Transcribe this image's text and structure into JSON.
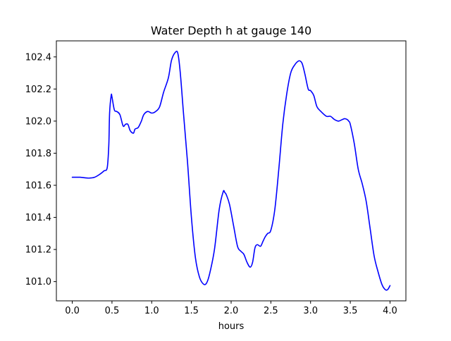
{
  "chart_data": {
    "type": "line",
    "title": "Water Depth h at gauge 140",
    "xlabel": "hours",
    "ylabel": "",
    "xlim": [
      -0.2,
      4.2
    ],
    "ylim": [
      100.88,
      102.5
    ],
    "xticks": [
      0.0,
      0.5,
      1.0,
      1.5,
      2.0,
      2.5,
      3.0,
      3.5,
      4.0
    ],
    "xtick_labels": [
      "0.0",
      "0.5",
      "1.0",
      "1.5",
      "2.0",
      "2.5",
      "3.0",
      "3.5",
      "4.0"
    ],
    "yticks": [
      101.0,
      101.2,
      101.4,
      101.6,
      101.8,
      102.0,
      102.2,
      102.4
    ],
    "ytick_labels": [
      "101.0",
      "101.2",
      "101.4",
      "101.6",
      "101.8",
      "102.0",
      "102.2",
      "102.4"
    ],
    "grid": false,
    "legend": "none",
    "series": [
      {
        "color": "#0000ff",
        "x": [
          0.0,
          0.1,
          0.2,
          0.28,
          0.35,
          0.4,
          0.44,
          0.46,
          0.47,
          0.49,
          0.5,
          0.53,
          0.56,
          0.6,
          0.64,
          0.67,
          0.7,
          0.73,
          0.77,
          0.79,
          0.83,
          0.87,
          0.9,
          0.95,
          1.0,
          1.05,
          1.1,
          1.15,
          1.21,
          1.25,
          1.3,
          1.33,
          1.36,
          1.4,
          1.45,
          1.5,
          1.55,
          1.6,
          1.65,
          1.69,
          1.73,
          1.79,
          1.85,
          1.9,
          1.92,
          1.94,
          1.98,
          2.03,
          2.08,
          2.12,
          2.16,
          2.2,
          2.24,
          2.27,
          2.3,
          2.33,
          2.37,
          2.4,
          2.43,
          2.46,
          2.5,
          2.55,
          2.6,
          2.65,
          2.7,
          2.75,
          2.8,
          2.85,
          2.88,
          2.9,
          2.93,
          2.97,
          3.0,
          3.04,
          3.08,
          3.13,
          3.2,
          3.25,
          3.3,
          3.35,
          3.4,
          3.43,
          3.46,
          3.48,
          3.5,
          3.55,
          3.6,
          3.65,
          3.7,
          3.75,
          3.8,
          3.85,
          3.9,
          3.94,
          3.97,
          4.0
        ],
        "y": [
          101.65,
          101.65,
          101.645,
          101.65,
          101.67,
          101.69,
          101.71,
          101.85,
          102.05,
          102.16,
          102.15,
          102.07,
          102.06,
          102.04,
          101.97,
          101.98,
          101.98,
          101.94,
          101.925,
          101.95,
          101.96,
          102.0,
          102.04,
          102.06,
          102.05,
          102.06,
          102.09,
          102.18,
          102.27,
          102.38,
          102.43,
          102.42,
          102.3,
          102.05,
          101.75,
          101.4,
          101.15,
          101.03,
          100.985,
          100.99,
          101.05,
          101.2,
          101.45,
          101.56,
          101.555,
          101.54,
          101.48,
          101.35,
          101.22,
          101.19,
          101.17,
          101.12,
          101.09,
          101.12,
          101.21,
          101.23,
          101.22,
          101.25,
          101.28,
          101.3,
          101.32,
          101.45,
          101.7,
          101.98,
          102.17,
          102.3,
          102.35,
          102.375,
          102.37,
          102.35,
          102.29,
          102.2,
          102.19,
          102.16,
          102.09,
          102.06,
          102.03,
          102.03,
          102.01,
          102.0,
          102.01,
          102.015,
          102.01,
          102.0,
          101.98,
          101.86,
          101.7,
          101.61,
          101.5,
          101.33,
          101.16,
          101.06,
          100.98,
          100.95,
          100.95,
          100.975
        ]
      }
    ]
  }
}
